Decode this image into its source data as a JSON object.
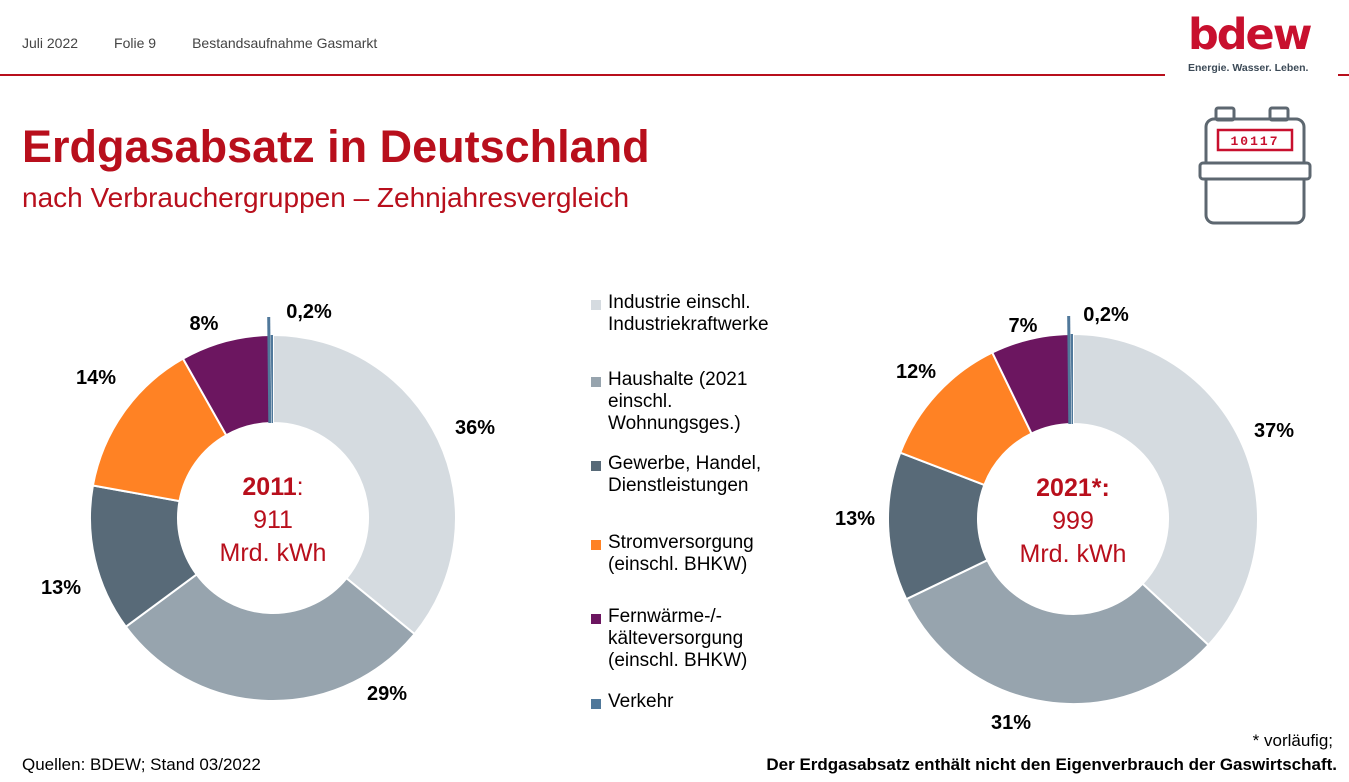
{
  "header": {
    "date": "Juli 2022",
    "slide": "Folie 9",
    "topic": "Bestandsaufnahme Gasmarkt"
  },
  "logo": {
    "wordmark": "bdew",
    "tagline": "Energie. Wasser. Leben.",
    "brand_color": "#c8102e"
  },
  "meter_icon": {
    "icon": "gas-meter-icon",
    "reading": "10117"
  },
  "title": "Erdgasabsatz in Deutschland",
  "subtitle": "nach Verbrauchergruppen – Zehnjahresvergleich",
  "chart_data": [
    {
      "type": "donut",
      "center": {
        "year_label": "2011",
        "year_suffix": ":",
        "value": "911",
        "unit": "Mrd. kWh"
      },
      "categories": [
        "Industrie einschl. Industriekraftwerke",
        "Haushalte (2021 einschl. Wohnungsges.)",
        "Gewerbe, Handel, Dienstleistungen",
        "Stromversorgung (einschl. BHKW)",
        "Fernwärme-/-kälteversorgung (einschl. BHKW)",
        "Verkehr"
      ],
      "values": [
        36,
        29,
        13,
        14,
        8,
        0.2
      ],
      "labels": [
        "36%",
        "29%",
        "13%",
        "14%",
        "8%",
        "0,2%"
      ],
      "colors": [
        "#d5dbe0",
        "#97a4ae",
        "#586a78",
        "#ff8224",
        "#6c1660",
        "#50789a"
      ]
    },
    {
      "type": "donut",
      "center": {
        "year_label": "2021*",
        "year_suffix": ":",
        "value": "999",
        "unit": "Mrd. kWh"
      },
      "categories": [
        "Industrie einschl. Industriekraftwerke",
        "Haushalte (2021 einschl. Wohnungsges.)",
        "Gewerbe, Handel, Dienstleistungen",
        "Stromversorgung (einschl. BHKW)",
        "Fernwärme-/-kälteversorgung (einschl. BHKW)",
        "Verkehr"
      ],
      "values": [
        37,
        31,
        13,
        12,
        7,
        0.2
      ],
      "labels": [
        "37%",
        "31%",
        "13%",
        "12%",
        "7%",
        "0,2%"
      ],
      "colors": [
        "#d5dbe0",
        "#97a4ae",
        "#586a78",
        "#ff8224",
        "#6c1660",
        "#50789a"
      ]
    }
  ],
  "legend": [
    {
      "label": "Industrie einschl.\nIndustriekraftwerke",
      "color": "#d5dbe0"
    },
    {
      "label": "Haushalte (2021\neinschl.\nWohnungsges.)",
      "color": "#97a4ae"
    },
    {
      "label": "Gewerbe, Handel,\nDienstleistungen",
      "color": "#586a78"
    },
    {
      "label": "Stromversorgung\n(einschl. BHKW)",
      "color": "#ff8224"
    },
    {
      "label": "Fernwärme-/-\nkälteversorgung\n(einschl. BHKW)",
      "color": "#6c1660"
    },
    {
      "label": "Verkehr",
      "color": "#50789a"
    }
  ],
  "footer": {
    "source": "Quellen: BDEW; Stand 03/2022",
    "footnote": "* vorläufig;",
    "note": "Der Erdgasabsatz enthält nicht den Eigenverbrauch der Gaswirtschaft."
  }
}
